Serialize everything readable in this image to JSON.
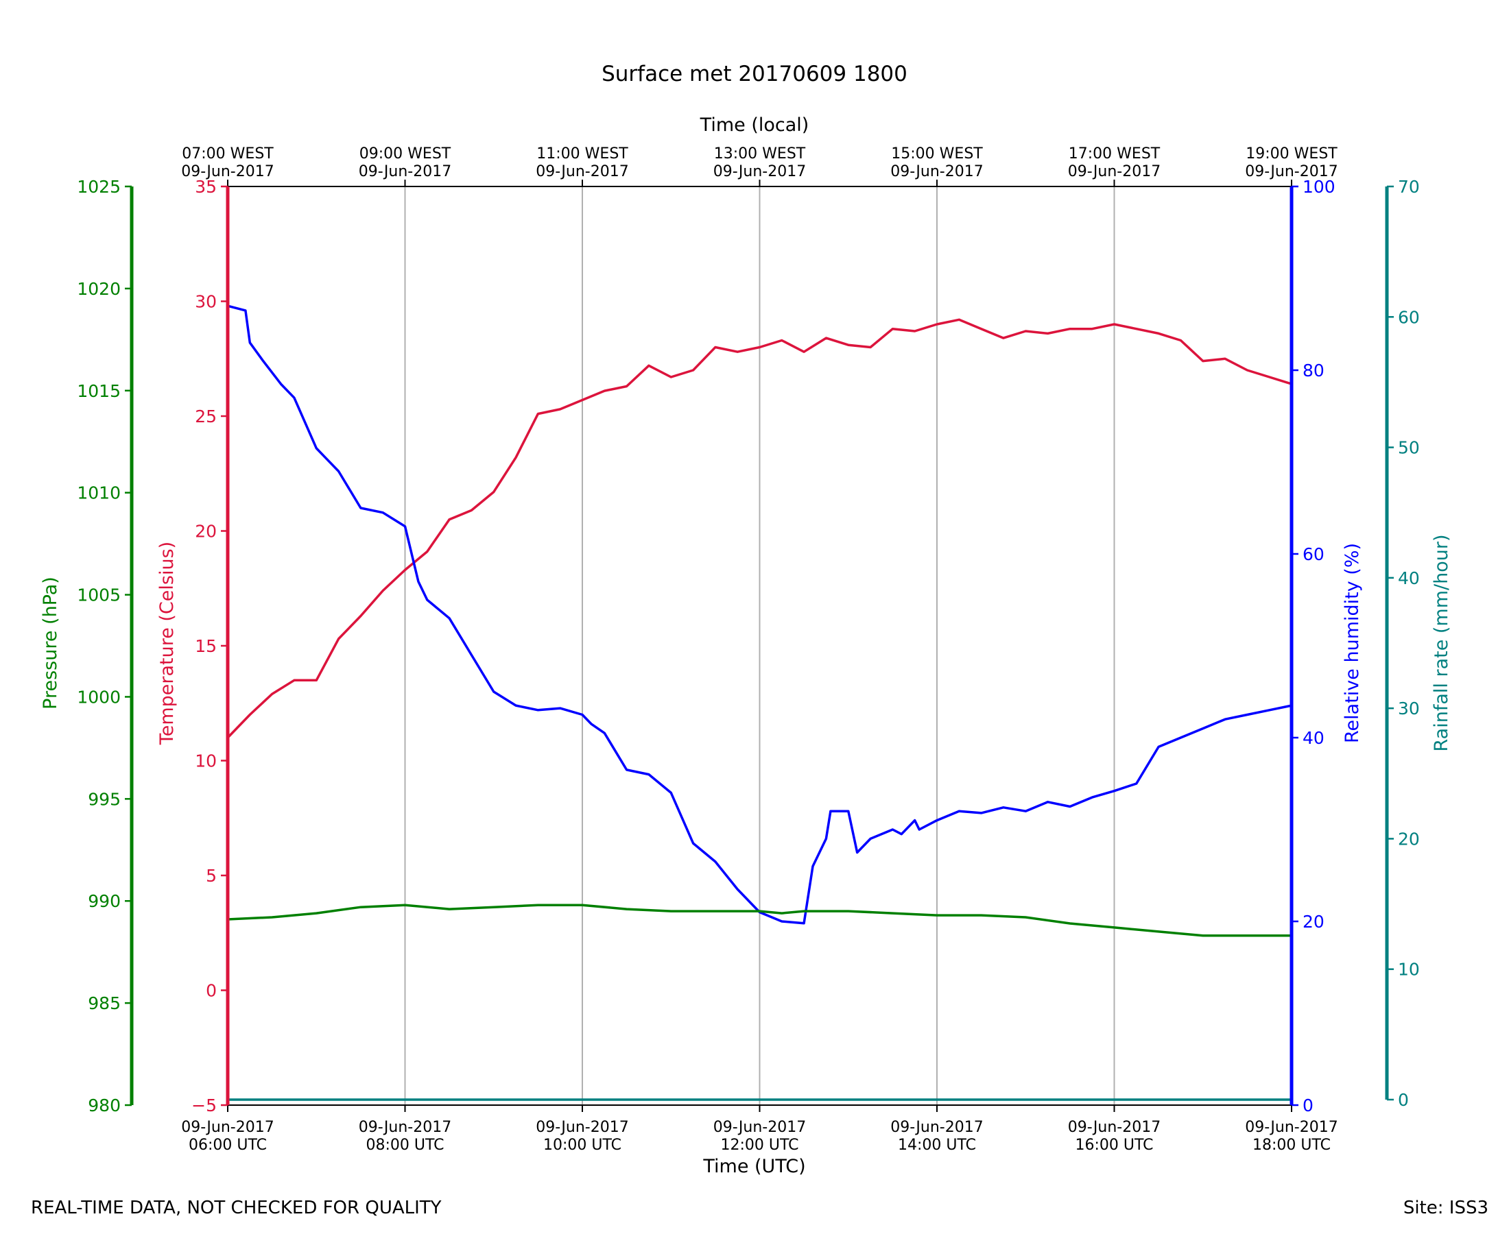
{
  "chart_data": {
    "type": "line",
    "title": "Surface met 20170609 1800",
    "xlabel_bottom": "Time (UTC)",
    "xlabel_top": "Time (local)",
    "x_ticks_bottom": [
      [
        "09-Jun-2017",
        "06:00 UTC"
      ],
      [
        "09-Jun-2017",
        "08:00 UTC"
      ],
      [
        "09-Jun-2017",
        "10:00 UTC"
      ],
      [
        "09-Jun-2017",
        "12:00 UTC"
      ],
      [
        "09-Jun-2017",
        "14:00 UTC"
      ],
      [
        "09-Jun-2017",
        "16:00 UTC"
      ],
      [
        "09-Jun-2017",
        "18:00 UTC"
      ]
    ],
    "x_ticks_top": [
      [
        "07:00 WEST",
        "09-Jun-2017"
      ],
      [
        "09:00 WEST",
        "09-Jun-2017"
      ],
      [
        "11:00 WEST",
        "09-Jun-2017"
      ],
      [
        "13:00 WEST",
        "09-Jun-2017"
      ],
      [
        "15:00 WEST",
        "09-Jun-2017"
      ],
      [
        "17:00 WEST",
        "09-Jun-2017"
      ],
      [
        "19:00 WEST",
        "09-Jun-2017"
      ]
    ],
    "x_range_hours_utc": [
      6,
      18
    ],
    "grid": "vertical",
    "axes": {
      "pressure": {
        "label": "Pressure (hPa)",
        "color": "#008000",
        "range": [
          980,
          1025
        ],
        "ticks": [
          980,
          985,
          990,
          995,
          1000,
          1005,
          1010,
          1015,
          1020,
          1025
        ]
      },
      "temperature": {
        "label": "Temperature (Celsius)",
        "color": "#dc143c",
        "range": [
          -5,
          35
        ],
        "ticks": [
          "−5",
          "0",
          "5",
          "10",
          "15",
          "20",
          "25",
          "30",
          "35"
        ]
      },
      "humidity": {
        "label": "Relative humidity (%)",
        "color": "#0000ff",
        "range": [
          0,
          100
        ],
        "ticks": [
          0,
          20,
          40,
          60,
          80,
          100
        ]
      },
      "rainfall": {
        "label": "Rainfall rate (mm/hour)",
        "color": "#008080",
        "range": [
          0,
          70
        ],
        "ticks": [
          0,
          10,
          20,
          30,
          40,
          50,
          60,
          70
        ]
      }
    },
    "series": [
      {
        "axis": "temperature",
        "x": [
          6.0,
          6.25,
          6.5,
          6.75,
          7.0,
          7.25,
          7.5,
          7.75,
          8.0,
          8.25,
          8.5,
          8.75,
          9.0,
          9.25,
          9.5,
          9.75,
          10.0,
          10.25,
          10.5,
          10.75,
          11.0,
          11.25,
          11.5,
          11.75,
          12.0,
          12.25,
          12.5,
          12.75,
          13.0,
          13.25,
          13.5,
          13.75,
          14.0,
          14.25,
          14.5,
          14.75,
          15.0,
          15.25,
          15.5,
          15.75,
          16.0,
          16.25,
          16.5,
          16.75,
          17.0,
          17.25,
          17.5,
          17.75,
          18.0
        ],
        "y": [
          11.0,
          12.0,
          12.9,
          13.5,
          13.5,
          15.3,
          16.3,
          17.4,
          18.3,
          19.1,
          20.5,
          20.9,
          21.7,
          23.2,
          25.1,
          25.3,
          25.7,
          26.1,
          26.3,
          27.2,
          26.7,
          27.0,
          28.0,
          27.8,
          28.0,
          28.3,
          27.8,
          28.4,
          28.1,
          28.0,
          28.8,
          28.7,
          29.0,
          29.2,
          28.8,
          28.4,
          28.7,
          28.6,
          28.8,
          28.8,
          29.0,
          28.8,
          28.6,
          28.3,
          27.4,
          27.5,
          27.0,
          26.7,
          26.4
        ]
      },
      {
        "axis": "humidity",
        "x": [
          6.0,
          6.2,
          6.25,
          6.4,
          6.6,
          6.75,
          7.0,
          7.1,
          7.25,
          7.5,
          7.75,
          8.0,
          8.15,
          8.25,
          8.5,
          8.75,
          9.0,
          9.25,
          9.5,
          9.75,
          10.0,
          10.1,
          10.25,
          10.5,
          10.75,
          11.0,
          11.25,
          11.5,
          11.75,
          12.0,
          12.25,
          12.5,
          12.6,
          12.75,
          12.8,
          13.0,
          13.1,
          13.25,
          13.5,
          13.6,
          13.75,
          13.8,
          14.0,
          14.25,
          14.5,
          14.75,
          15.0,
          15.25,
          15.5,
          15.75,
          16.0,
          16.25,
          16.5,
          16.75,
          17.0,
          17.25,
          17.5,
          17.75,
          18.0
        ],
        "y": [
          87.0,
          86.5,
          83.0,
          81.0,
          78.5,
          77.0,
          71.5,
          70.5,
          69.0,
          65.0,
          64.5,
          63.0,
          57.0,
          55.0,
          53.0,
          49.0,
          45.0,
          43.5,
          43.0,
          43.2,
          42.5,
          41.5,
          40.5,
          36.5,
          36.0,
          34.0,
          28.5,
          26.5,
          23.5,
          21.0,
          20.0,
          19.8,
          26.0,
          29.0,
          32.0,
          32.0,
          27.5,
          29.0,
          30.0,
          29.5,
          31.0,
          30.0,
          31.0,
          32.0,
          31.8,
          32.4,
          32.0,
          33.0,
          32.5,
          33.5,
          34.2,
          35.0,
          39.0,
          40.0,
          41.0,
          42.0,
          42.5,
          43.0,
          43.5
        ]
      },
      {
        "axis": "pressure",
        "x": [
          6.0,
          6.5,
          7.0,
          7.5,
          8.0,
          8.5,
          9.0,
          9.5,
          10.0,
          10.5,
          11.0,
          11.5,
          12.0,
          12.25,
          12.5,
          13.0,
          13.5,
          14.0,
          14.5,
          15.0,
          15.5,
          16.0,
          16.5,
          17.0,
          17.5,
          18.0
        ],
        "y": [
          989.1,
          989.2,
          989.4,
          989.7,
          989.8,
          989.6,
          989.7,
          989.8,
          989.8,
          989.6,
          989.5,
          989.5,
          989.5,
          989.4,
          989.5,
          989.5,
          989.4,
          989.3,
          989.3,
          989.2,
          988.9,
          988.7,
          988.5,
          988.3,
          988.3,
          988.3
        ]
      },
      {
        "axis": "rainfall",
        "x": [
          6.0,
          18.0
        ],
        "y": [
          0.0,
          0.0
        ]
      }
    ]
  },
  "footer": {
    "left": "REAL-TIME DATA, NOT CHECKED FOR QUALITY",
    "right": "Site: ISS3"
  }
}
